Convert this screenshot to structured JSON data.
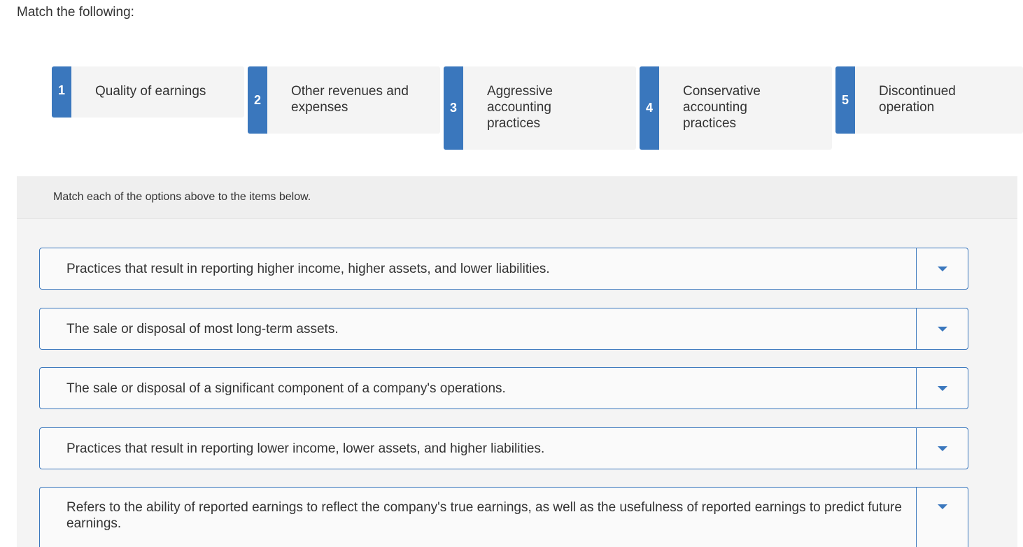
{
  "question": {
    "title": "Match the following:"
  },
  "options": [
    {
      "number": "1",
      "label": "Quality of earnings"
    },
    {
      "number": "2",
      "label": "Other revenues and expenses"
    },
    {
      "number": "3",
      "label": "Aggressive accounting practices"
    },
    {
      "number": "4",
      "label": "Conservative accounting practices"
    },
    {
      "number": "5",
      "label": "Discontinued operation"
    }
  ],
  "match": {
    "instructions": "Match each of the options above to the items below.",
    "items": [
      {
        "text": "Practices that result in reporting higher income, higher assets, and lower liabilities.",
        "selected": ""
      },
      {
        "text": "The sale or disposal of most long-term assets.",
        "selected": ""
      },
      {
        "text": "The sale or disposal of a significant component of a company's operations.",
        "selected": ""
      },
      {
        "text": "Practices that result in reporting lower income, lower assets, and higher liabilities.",
        "selected": ""
      },
      {
        "text": "Refers to the ability of reported earnings to reflect the company's true earnings, as well as the usefulness of reported earnings to predict future earnings.",
        "selected": ""
      }
    ]
  },
  "icons": {
    "dropdown": "caret-down-icon"
  },
  "colors": {
    "accent": "#3a77bd",
    "card_bg": "#f4f4f4",
    "panel_bg": "#f4f4f4",
    "text": "#333333"
  }
}
